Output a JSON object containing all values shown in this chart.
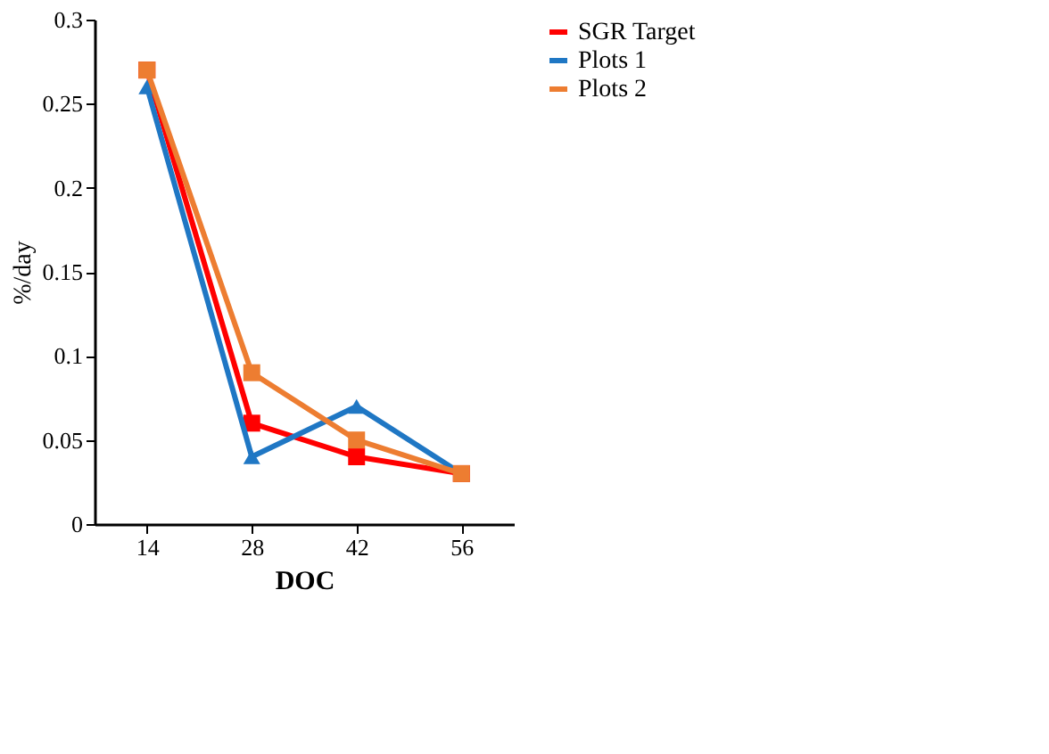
{
  "chart_data": {
    "type": "line",
    "xlabel": "DOC",
    "ylabel": "%/day",
    "categories": [
      "14",
      "28",
      "42",
      "56"
    ],
    "series": [
      {
        "name": "SGR Target",
        "color": "#ff0000",
        "marker": "square",
        "values": [
          0.27,
          0.06,
          0.04,
          0.03
        ]
      },
      {
        "name": "Plots 1",
        "color": "#1f77c4",
        "marker": "triangle",
        "values": [
          0.26,
          0.04,
          0.07,
          0.03
        ]
      },
      {
        "name": "Plots 2",
        "color": "#ed7d31",
        "marker": "square",
        "values": [
          0.27,
          0.09,
          0.05,
          0.03
        ]
      }
    ],
    "ylim": [
      0,
      0.3
    ],
    "yticks": [
      0,
      0.05,
      0.1,
      0.15,
      0.2,
      0.25,
      0.3
    ],
    "grid": false,
    "legend": "right",
    "line_style": "solid"
  }
}
